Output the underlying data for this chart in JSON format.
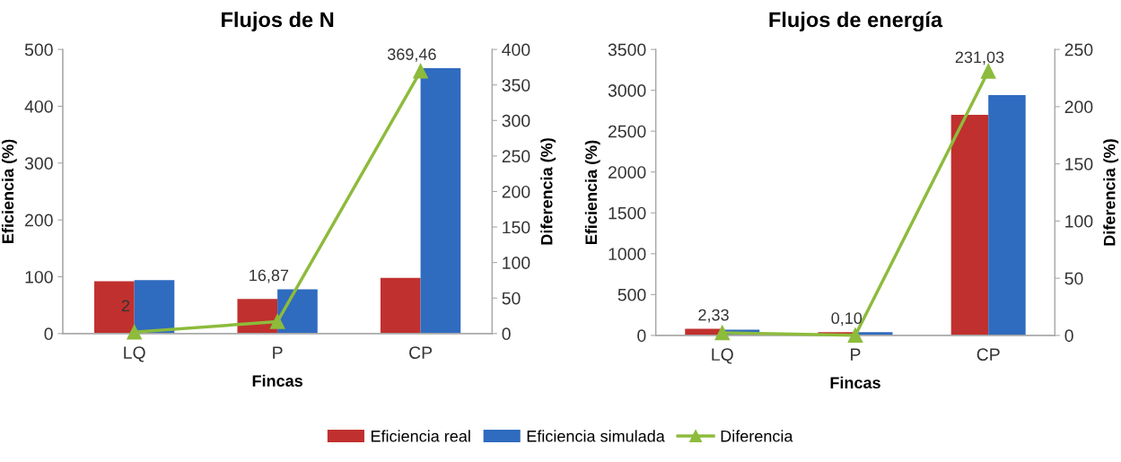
{
  "chart_data": [
    {
      "type": "bar",
      "title": "Flujos de N",
      "xlabel": "Fincas",
      "ylabel": "Eficiencia (%)",
      "y2label": "Diferencia (%)",
      "categories": [
        "LQ",
        "P",
        "CP"
      ],
      "ylim": [
        0,
        500
      ],
      "yticks": [
        0,
        100,
        200,
        300,
        400,
        500
      ],
      "y2lim": [
        0,
        400
      ],
      "y2ticks": [
        0,
        50,
        100,
        150,
        200,
        250,
        300,
        350,
        400
      ],
      "grid": false,
      "legend": "bottom",
      "series": [
        {
          "name": "Eficiencia real",
          "color": "#c0302e",
          "values": [
            92,
            61,
            98
          ]
        },
        {
          "name": "Eficiencia simulada",
          "color": "#2f6bbf",
          "values": [
            94,
            78,
            467
          ]
        },
        {
          "name": "Diferencia",
          "type": "line",
          "axis": "y2",
          "marker": "triangle",
          "color": "#8dbb3c",
          "values": [
            2,
            16.87,
            369.46
          ],
          "value_labels": [
            "2",
            "16,87",
            "369,46"
          ]
        }
      ]
    },
    {
      "type": "bar",
      "title": "Flujos de energía",
      "xlabel": "Fincas",
      "ylabel": "Eficiencia (%)",
      "y2label": "Diferencia (%)",
      "categories": [
        "LQ",
        "P",
        "CP"
      ],
      "ylim": [
        0,
        3500
      ],
      "yticks": [
        0,
        500,
        1000,
        1500,
        2000,
        2500,
        3000,
        3500
      ],
      "y2lim": [
        0,
        250
      ],
      "y2ticks": [
        0,
        50,
        100,
        150,
        200,
        250
      ],
      "grid": false,
      "legend": "bottom",
      "series": [
        {
          "name": "Eficiencia real",
          "color": "#c0302e",
          "values": [
            80,
            40,
            2700
          ]
        },
        {
          "name": "Eficiencia simulada",
          "color": "#2f6bbf",
          "values": [
            70,
            40,
            2940
          ]
        },
        {
          "name": "Diferencia",
          "type": "line",
          "axis": "y2",
          "marker": "triangle",
          "color": "#8dbb3c",
          "values": [
            2.33,
            0.1,
            231.03
          ],
          "value_labels": [
            "2,33",
            "0,10",
            "231,03"
          ]
        }
      ]
    }
  ]
}
